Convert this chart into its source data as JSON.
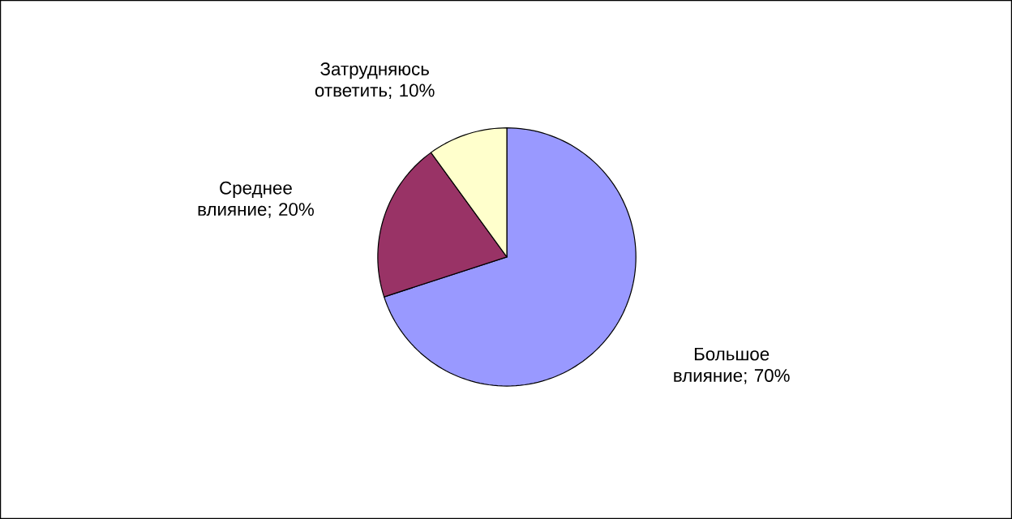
{
  "chart_data": {
    "type": "pie",
    "categories": [
      "Большое влияние; 70%",
      "Среднее влияние; 20%",
      "Затрудняюсь ответить; 10%"
    ],
    "values": [
      70,
      20,
      10
    ],
    "colors": [
      "#9999ff",
      "#993366",
      "#ffffcc"
    ]
  }
}
